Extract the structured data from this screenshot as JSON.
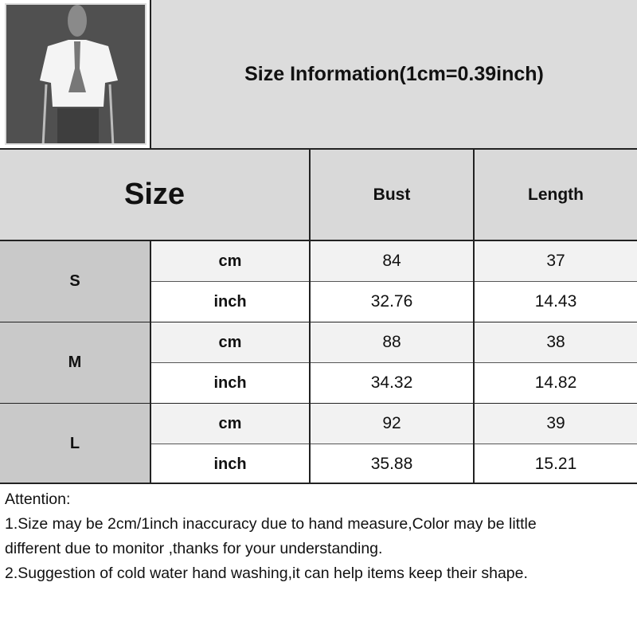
{
  "title": "Size Information(1cm=0.39inch)",
  "colors": {
    "header_bg": "#d9d9d9",
    "size_cell_bg": "#c9c9c9",
    "cm_row_bg": "#f2f2f2",
    "inch_row_bg": "#ffffff",
    "title_bg": "#dcdcdc"
  },
  "product_image": "cropped-white-tshirt-on-mannequin",
  "table": {
    "headers": {
      "size": "Size",
      "bust": "Bust",
      "length": "Length"
    },
    "rows": [
      {
        "size": "S",
        "cm": {
          "unit": "cm",
          "bust": "84",
          "length": "37"
        },
        "inch": {
          "unit": "inch",
          "bust": "32.76",
          "length": "14.43"
        }
      },
      {
        "size": "M",
        "cm": {
          "unit": "cm",
          "bust": "88",
          "length": "38"
        },
        "inch": {
          "unit": "inch",
          "bust": "34.32",
          "length": "14.82"
        }
      },
      {
        "size": "L",
        "cm": {
          "unit": "cm",
          "bust": "92",
          "length": "39"
        },
        "inch": {
          "unit": "inch",
          "bust": "35.88",
          "length": "15.21"
        }
      }
    ]
  },
  "attention": {
    "heading": "Attention:",
    "line1a": "1.Size may be 2cm/1inch inaccuracy due to hand measure,Color may be little",
    "line1b": "different due to monitor ,thanks for your understanding.",
    "line2": "2.Suggestion of cold water hand washing,it can help items keep their shape."
  }
}
